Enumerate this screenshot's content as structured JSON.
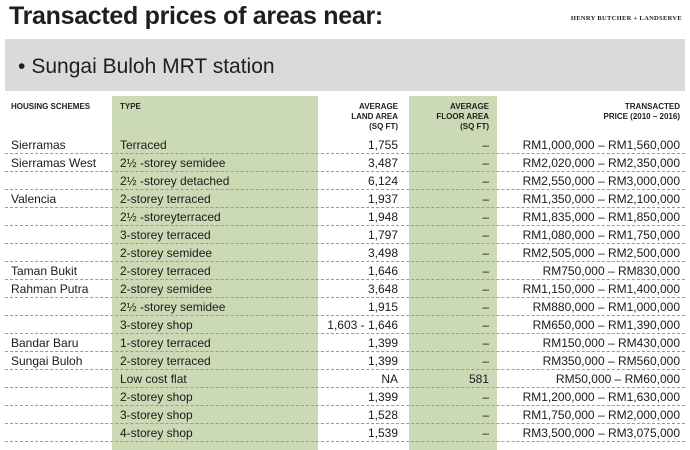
{
  "header": {
    "title": "Transacted prices of areas near:",
    "credit": "HENRY BUTCHER + LANDSERVE"
  },
  "banner": {
    "bullet": "•",
    "station": "Sungai Buloh MRT station"
  },
  "table": {
    "columns": {
      "scheme": "HOUSING SCHEMES",
      "type": "TYPE",
      "land_1": "AVERAGE",
      "land_2": "LAND AREA",
      "land_3": "(SQ FT)",
      "floor_1": "AVERAGE",
      "floor_2": "FLOOR AREA",
      "floor_3": "(SQ FT)",
      "price_1": "TRANSACTED",
      "price_2": "PRICE (2010 – 2016)"
    },
    "rows": [
      {
        "scheme": "Sierramas",
        "type": "Terraced",
        "land": "1,755",
        "floor": "–",
        "price": "RM1,000,000 – RM1,560,000"
      },
      {
        "scheme": "Sierramas West",
        "type": "2½ -storey semidee",
        "land": "3,487",
        "floor": "–",
        "price": "RM2,020,000 – RM2,350,000"
      },
      {
        "scheme": "",
        "type": "2½ -storey detached",
        "land": "6,124",
        "floor": "–",
        "price": "RM2,550,000 – RM3,000,000"
      },
      {
        "scheme": "Valencia",
        "type": "2-storey terraced",
        "land": "1,937",
        "floor": "–",
        "price": "RM1,350,000 – RM2,100,000"
      },
      {
        "scheme": "",
        "type": "2½ -storeyterraced",
        "land": "1,948",
        "floor": "–",
        "price": "RM1,835,000 – RM1,850,000"
      },
      {
        "scheme": "",
        "type": "3-storey terraced",
        "land": "1,797",
        "floor": "–",
        "price": "RM1,080,000 – RM1,750,000"
      },
      {
        "scheme": "",
        "type": "2-storey semidee",
        "land": "3,498",
        "floor": "–",
        "price": "RM2,505,000 – RM2,500,000"
      },
      {
        "scheme": "Taman Bukit",
        "type": "2-storey terraced",
        "land": "1,646",
        "floor": "–",
        "price": "RM750,000 – RM830,000"
      },
      {
        "scheme": "Rahman Putra",
        "type": "2-storey semidee",
        "land": "3,648",
        "floor": "–",
        "price": "RM1,150,000 – RM1,400,000"
      },
      {
        "scheme": "",
        "type": "2½ -storey semidee",
        "land": "1,915",
        "floor": "–",
        "price": "RM880,000 – RM1,000,000"
      },
      {
        "scheme": "",
        "type": "3-storey shop",
        "land": "1,603 - 1,646",
        "floor": "–",
        "price": "RM650,000 – RM1,390,000"
      },
      {
        "scheme": "Bandar Baru",
        "type": "1-storey terraced",
        "land": "1,399",
        "floor": "–",
        "price": "RM150,000 – RM430,000"
      },
      {
        "scheme": "Sungai Buloh",
        "type": "2-storey terraced",
        "land": "1,399",
        "floor": "–",
        "price": "RM350,000 – RM560,000"
      },
      {
        "scheme": "",
        "type": "Low cost flat",
        "land": "NA",
        "floor": "581",
        "price": "RM50,000 – RM60,000"
      },
      {
        "scheme": "",
        "type": "2-storey shop",
        "land": "1,399",
        "floor": "–",
        "price": "RM1,200,000 – RM1,630,000"
      },
      {
        "scheme": "",
        "type": "3-storey shop",
        "land": "1,528",
        "floor": "–",
        "price": "RM1,750,000 – RM2,000,000"
      },
      {
        "scheme": "",
        "type": "4-storey shop",
        "land": "1,539",
        "floor": "–",
        "price": "RM3,500,000 – RM3,075,000"
      }
    ]
  },
  "colors": {
    "green_column": "#ccd9b5",
    "banner_gray": "#dadada"
  }
}
